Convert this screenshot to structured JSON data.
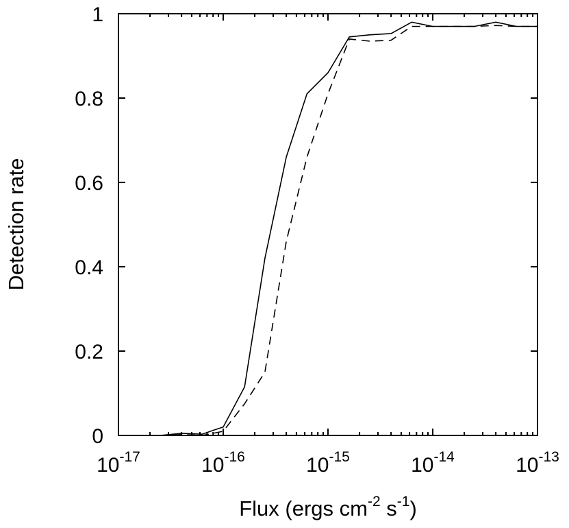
{
  "chart_data": {
    "type": "line",
    "xlabel": {
      "parts": [
        {
          "text": "Flux (ergs cm",
          "sup": false
        },
        {
          "text": "-2",
          "sup": true
        },
        {
          "text": " s",
          "sup": false
        },
        {
          "text": "-1",
          "sup": true
        },
        {
          "text": ")",
          "sup": false
        }
      ]
    },
    "ylabel": "Detection rate",
    "x_scale": "log",
    "xlim": [
      1e-17,
      1e-13
    ],
    "ylim": [
      0,
      1
    ],
    "x_ticks": [
      {
        "value": 1e-17,
        "base": "10",
        "exp": "-17"
      },
      {
        "value": 1e-16,
        "base": "10",
        "exp": "-16"
      },
      {
        "value": 1e-15,
        "base": "10",
        "exp": "-15"
      },
      {
        "value": 1e-14,
        "base": "10",
        "exp": "-14"
      },
      {
        "value": 1e-13,
        "base": "10",
        "exp": "-13"
      }
    ],
    "y_ticks": [
      {
        "value": 0,
        "label": "0"
      },
      {
        "value": 0.2,
        "label": "0.2"
      },
      {
        "value": 0.4,
        "label": "0.4"
      },
      {
        "value": 0.6,
        "label": "0.6"
      },
      {
        "value": 0.8,
        "label": "0.8"
      },
      {
        "value": 1,
        "label": "1"
      }
    ],
    "grid": false,
    "series": [
      {
        "style": "solid",
        "color": "#000000",
        "points": [
          [
            1e-17,
            0
          ],
          [
            1.6e-17,
            0
          ],
          [
            2.5e-17,
            0
          ],
          [
            4e-17,
            0.005
          ],
          [
            6.3e-17,
            0.003
          ],
          [
            8e-17,
            0.012
          ],
          [
            1e-16,
            0.02
          ],
          [
            1.6e-16,
            0.115
          ],
          [
            2.5e-16,
            0.42
          ],
          [
            4e-16,
            0.66
          ],
          [
            6.3e-16,
            0.81
          ],
          [
            1e-15,
            0.86
          ],
          [
            1.6e-15,
            0.945
          ],
          [
            2.5e-15,
            0.95
          ],
          [
            4e-15,
            0.953
          ],
          [
            6.3e-15,
            0.98
          ],
          [
            1e-14,
            0.97
          ],
          [
            1.6e-14,
            0.97
          ],
          [
            2.5e-14,
            0.97
          ],
          [
            4e-14,
            0.98
          ],
          [
            6.3e-14,
            0.97
          ],
          [
            1e-13,
            0.97
          ]
        ]
      },
      {
        "style": "dashed",
        "color": "#000000",
        "points": [
          [
            1e-17,
            0
          ],
          [
            2.5e-17,
            0
          ],
          [
            4e-17,
            0.002
          ],
          [
            6.3e-17,
            0
          ],
          [
            8e-17,
            0.005
          ],
          [
            1e-16,
            0.01
          ],
          [
            1.6e-16,
            0.075
          ],
          [
            2.5e-16,
            0.15
          ],
          [
            4e-16,
            0.46
          ],
          [
            6.3e-16,
            0.66
          ],
          [
            1e-15,
            0.81
          ],
          [
            1.6e-15,
            0.94
          ],
          [
            2.5e-15,
            0.935
          ],
          [
            4e-15,
            0.937
          ],
          [
            6.3e-15,
            0.97
          ],
          [
            1e-14,
            0.97
          ],
          [
            1.6e-14,
            0.97
          ],
          [
            2.5e-14,
            0.97
          ],
          [
            4e-14,
            0.972
          ],
          [
            6.3e-14,
            0.97
          ],
          [
            1e-13,
            0.97
          ]
        ]
      }
    ]
  }
}
